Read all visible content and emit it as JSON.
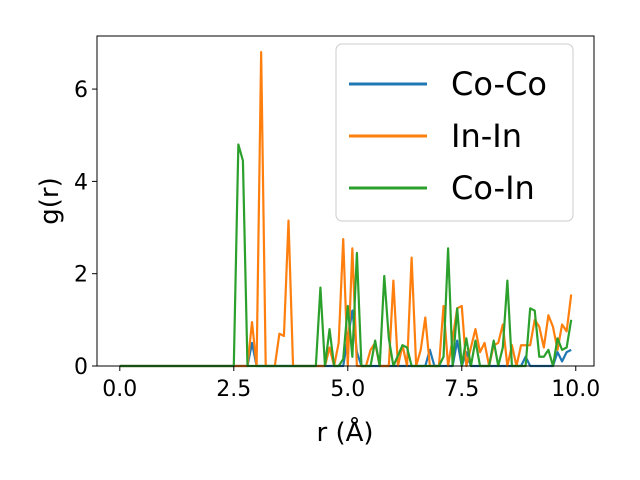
{
  "chart_data": {
    "type": "line",
    "title": "",
    "xlabel": "r (Å)",
    "ylabel": "g(r)",
    "xlim": [
      -0.5,
      10.4
    ],
    "ylim": [
      0,
      7.15
    ],
    "xticks": [
      0.0,
      2.5,
      5.0,
      7.5,
      10.0
    ],
    "xtick_labels": [
      "0.0",
      "2.5",
      "5.0",
      "7.5",
      "10.0"
    ],
    "yticks": [
      0,
      2,
      4,
      6
    ],
    "ytick_labels": [
      "0",
      "2",
      "4",
      "6"
    ],
    "grid": false,
    "legend_position": "top-right",
    "series": [
      {
        "name": "Co-Co",
        "color": "#1f77b4",
        "points": [
          [
            0.0,
            0
          ],
          [
            2.7,
            0
          ],
          [
            2.8,
            0
          ],
          [
            2.9,
            0.5
          ],
          [
            3.0,
            0
          ],
          [
            4.9,
            0
          ],
          [
            5.0,
            0.6
          ],
          [
            5.1,
            1.2
          ],
          [
            5.2,
            0.3
          ],
          [
            5.3,
            0
          ],
          [
            6.7,
            0
          ],
          [
            6.8,
            0.35
          ],
          [
            6.9,
            0
          ],
          [
            7.3,
            0
          ],
          [
            7.4,
            0.55
          ],
          [
            7.5,
            0
          ],
          [
            7.6,
            0.3
          ],
          [
            7.7,
            0
          ],
          [
            8.8,
            0
          ],
          [
            8.9,
            0.2
          ],
          [
            9.0,
            0
          ],
          [
            9.5,
            0
          ],
          [
            9.6,
            0.3
          ],
          [
            9.7,
            0.1
          ],
          [
            9.8,
            0.3
          ],
          [
            9.9,
            0.35
          ]
        ]
      },
      {
        "name": "In-In",
        "color": "#ff7f0e",
        "points": [
          [
            0.0,
            0
          ],
          [
            2.8,
            0
          ],
          [
            2.9,
            0.95
          ],
          [
            3.0,
            0
          ],
          [
            3.1,
            6.8
          ],
          [
            3.2,
            0
          ],
          [
            3.4,
            0
          ],
          [
            3.5,
            0.7
          ],
          [
            3.6,
            0.65
          ],
          [
            3.7,
            3.15
          ],
          [
            3.8,
            0
          ],
          [
            4.5,
            0
          ],
          [
            4.6,
            0.4
          ],
          [
            4.7,
            0
          ],
          [
            4.8,
            0.5
          ],
          [
            4.9,
            2.75
          ],
          [
            5.0,
            0
          ],
          [
            5.1,
            2.55
          ],
          [
            5.2,
            0
          ],
          [
            5.4,
            0
          ],
          [
            5.5,
            0.35
          ],
          [
            5.6,
            0.5
          ],
          [
            5.7,
            0
          ],
          [
            5.9,
            0
          ],
          [
            6.0,
            1.85
          ],
          [
            6.1,
            0
          ],
          [
            6.2,
            0.45
          ],
          [
            6.3,
            0
          ],
          [
            6.4,
            2.35
          ],
          [
            6.5,
            0
          ],
          [
            6.6,
            0.35
          ],
          [
            6.7,
            1.05
          ],
          [
            6.8,
            0
          ],
          [
            7.0,
            0
          ],
          [
            7.1,
            1.3
          ],
          [
            7.2,
            0
          ],
          [
            7.3,
            0.6
          ],
          [
            7.4,
            1.25
          ],
          [
            7.5,
            1.3
          ],
          [
            7.6,
            0
          ],
          [
            7.8,
            0.8
          ],
          [
            7.9,
            0.3
          ],
          [
            8.0,
            0.5
          ],
          [
            8.1,
            0
          ],
          [
            8.2,
            0.45
          ],
          [
            8.3,
            0.5
          ],
          [
            8.4,
            0.9
          ],
          [
            8.5,
            0
          ],
          [
            8.6,
            0.45
          ],
          [
            8.7,
            0
          ],
          [
            8.8,
            0.45
          ],
          [
            8.9,
            0.45
          ],
          [
            9.0,
            0.45
          ],
          [
            9.1,
            1.0
          ],
          [
            9.2,
            0.85
          ],
          [
            9.3,
            0.4
          ],
          [
            9.4,
            1.1
          ],
          [
            9.5,
            0.85
          ],
          [
            9.6,
            0.35
          ],
          [
            9.7,
            0.9
          ],
          [
            9.8,
            0.75
          ],
          [
            9.9,
            1.55
          ]
        ]
      },
      {
        "name": "Co-In",
        "color": "#2ca02c",
        "points": [
          [
            0.0,
            0
          ],
          [
            2.5,
            0
          ],
          [
            2.6,
            4.8
          ],
          [
            2.7,
            4.45
          ],
          [
            2.8,
            0
          ],
          [
            4.3,
            0
          ],
          [
            4.4,
            1.7
          ],
          [
            4.5,
            0
          ],
          [
            4.6,
            0.8
          ],
          [
            4.7,
            0
          ],
          [
            4.8,
            0
          ],
          [
            4.9,
            0.15
          ],
          [
            5.0,
            1.3
          ],
          [
            5.1,
            0.2
          ],
          [
            5.2,
            2.45
          ],
          [
            5.3,
            0
          ],
          [
            5.5,
            0
          ],
          [
            5.6,
            0.55
          ],
          [
            5.7,
            0
          ],
          [
            5.8,
            1.95
          ],
          [
            5.9,
            0.6
          ],
          [
            6.0,
            0
          ],
          [
            6.2,
            0.45
          ],
          [
            6.3,
            0.4
          ],
          [
            6.4,
            0
          ],
          [
            7.0,
            0
          ],
          [
            7.1,
            0.2
          ],
          [
            7.2,
            2.55
          ],
          [
            7.3,
            0
          ],
          [
            7.4,
            1.25
          ],
          [
            7.5,
            0
          ],
          [
            7.6,
            0.6
          ],
          [
            7.7,
            0
          ],
          [
            7.8,
            0.55
          ],
          [
            7.9,
            0
          ],
          [
            8.1,
            0
          ],
          [
            8.2,
            0.55
          ],
          [
            8.3,
            0
          ],
          [
            8.4,
            0.4
          ],
          [
            8.5,
            1.85
          ],
          [
            8.6,
            0
          ],
          [
            8.9,
            0
          ],
          [
            9.0,
            1.25
          ],
          [
            9.1,
            1.2
          ],
          [
            9.2,
            0.2
          ],
          [
            9.3,
            0.2
          ],
          [
            9.4,
            0.35
          ],
          [
            9.5,
            0
          ],
          [
            9.6,
            0.6
          ],
          [
            9.7,
            0.35
          ],
          [
            9.8,
            0.4
          ],
          [
            9.9,
            1.0
          ]
        ]
      }
    ]
  }
}
